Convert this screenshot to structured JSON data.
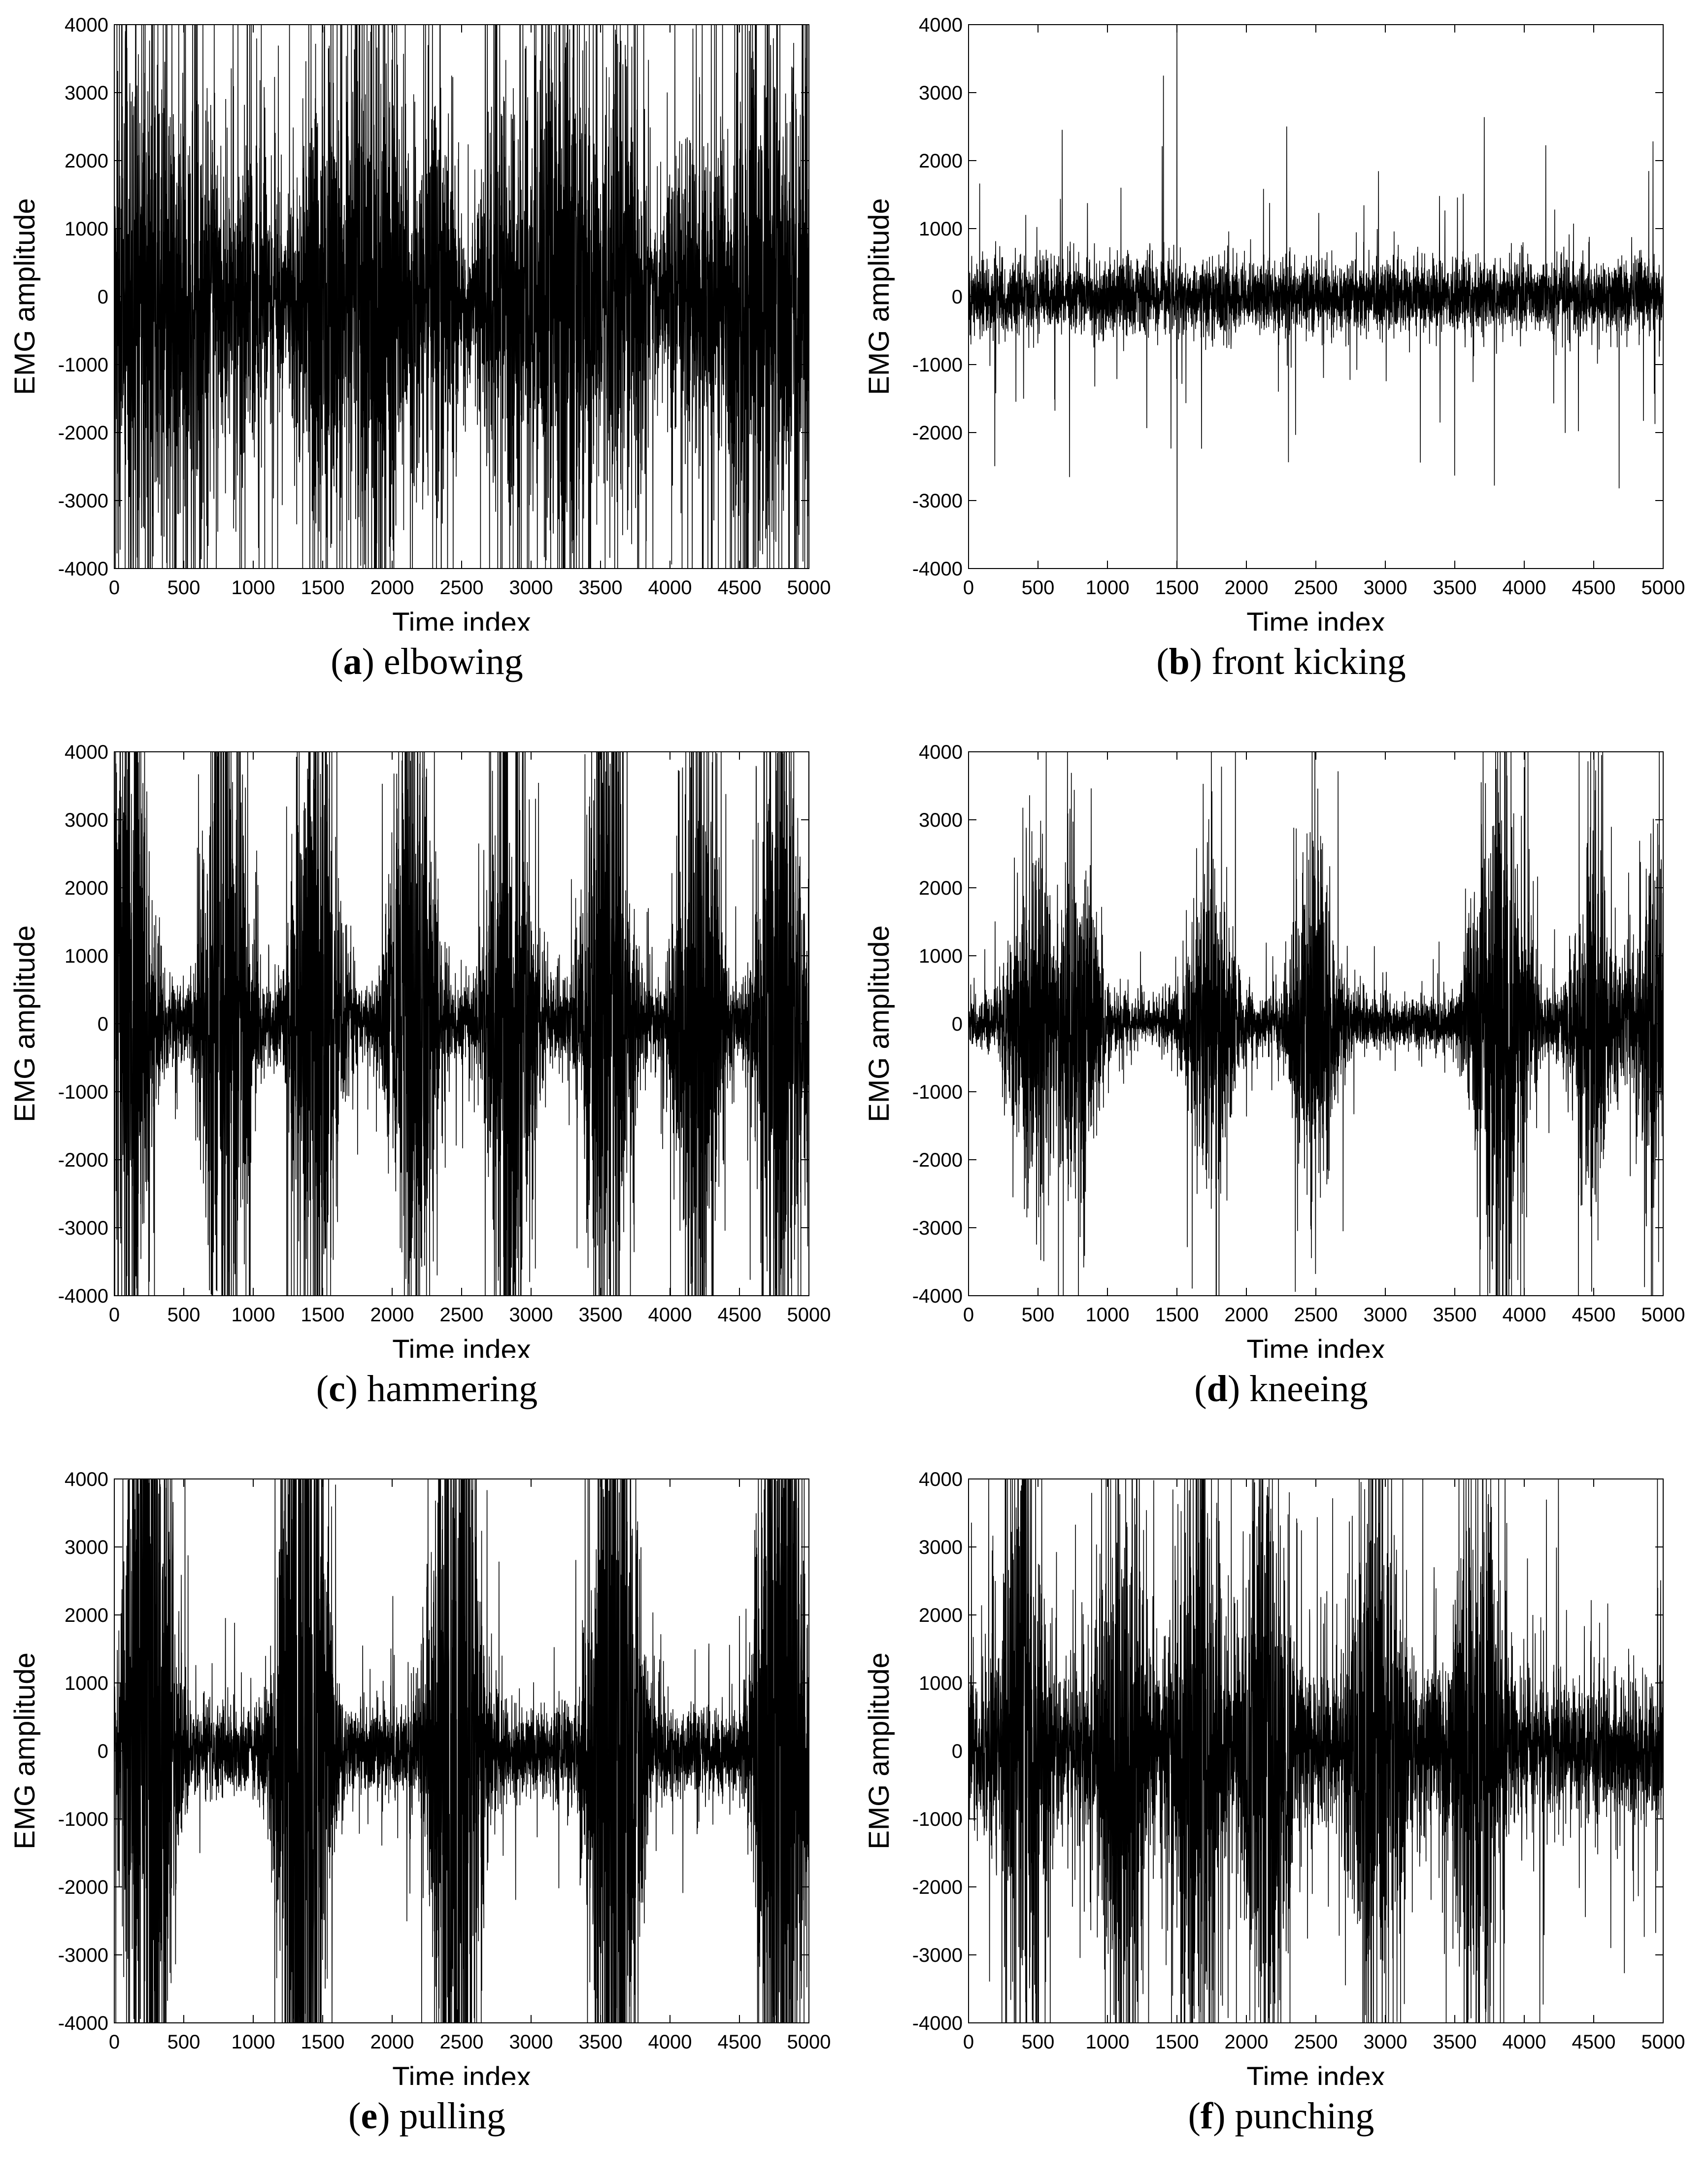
{
  "figure": {
    "panels": [
      {
        "letter": "a",
        "name": "elbowing",
        "pos": 0,
        "seed": 11,
        "centers": [],
        "regime": "dense",
        "base": 1600,
        "peak": 0,
        "spike": 0.16
      },
      {
        "letter": "b",
        "name": "front kicking",
        "pos": 1,
        "seed": 23,
        "centers": [],
        "regime": "quiet",
        "base": 260,
        "peak": 0,
        "spike": 0.03
      },
      {
        "letter": "c",
        "name": "hammering",
        "pos": 2,
        "seed": 37,
        "centers": [
          100,
          800,
          1450,
          2150,
          2850,
          3550,
          4200,
          4800
        ],
        "regime": "bursts",
        "base": 220,
        "peak": 2800,
        "spike": 0.1
      },
      {
        "letter": "d",
        "name": "kneeing",
        "pos": 3,
        "seed": 41,
        "centers": [
          450,
          780,
          1750,
          2500,
          3750,
          3900,
          4500,
          4950
        ],
        "regime": "bursts",
        "base": 180,
        "peak": 1300,
        "spike": 0.06
      },
      {
        "letter": "e",
        "name": "pulling",
        "pos": 4,
        "seed": 53,
        "centers": [
          250,
          1350,
          2450,
          3600,
          4800
        ],
        "regime": "bursts",
        "base": 300,
        "peak": 5000,
        "spike": 0.1
      },
      {
        "letter": "f",
        "name": "punching",
        "pos": 5,
        "seed": 67,
        "centers": [
          400,
          1100,
          1650,
          2150,
          2950,
          3650
        ],
        "regime": "bursts",
        "base": 500,
        "peak": 2000,
        "spike": 0.12
      }
    ]
  },
  "chart_data": [
    {
      "type": "line",
      "caption_letter": "a",
      "caption_text": "elbowing",
      "xlabel": "Time index",
      "ylabel": "EMG amplitude",
      "xlim": [
        0,
        5000
      ],
      "ylim": [
        -4000,
        4000
      ],
      "xticks": [
        0,
        500,
        1000,
        1500,
        2000,
        2500,
        3000,
        3500,
        4000,
        4500,
        5000
      ],
      "yticks": [
        -4000,
        -3000,
        -2000,
        -1000,
        0,
        1000,
        2000,
        3000,
        4000
      ],
      "series": [
        {
          "description": "dense high-amplitude EMG signal throughout, frequently clipping at ±4000",
          "n_points": 5000
        }
      ]
    },
    {
      "type": "line",
      "caption_letter": "b",
      "caption_text": "front kicking",
      "xlabel": "Time index",
      "ylabel": "EMG amplitude",
      "xlim": [
        0,
        5000
      ],
      "ylim": [
        -4000,
        4000
      ],
      "xticks": [
        0,
        500,
        1000,
        1500,
        2000,
        2500,
        3000,
        3500,
        4000,
        4500,
        5000
      ],
      "yticks": [
        -4000,
        -3000,
        -2000,
        -1000,
        0,
        1000,
        2000,
        3000,
        4000
      ],
      "series": [
        {
          "description": "low-amplitude signal around 0 with sparse spikes; largest spike near index 1500 reaching ±4000",
          "n_points": 5000
        }
      ]
    },
    {
      "type": "line",
      "caption_letter": "c",
      "caption_text": "hammering",
      "xlabel": "Time index",
      "ylabel": "EMG amplitude",
      "xlim": [
        0,
        5000
      ],
      "ylim": [
        -4000,
        4000
      ],
      "xticks": [
        0,
        500,
        1000,
        1500,
        2000,
        2500,
        3000,
        3500,
        4000,
        4500,
        5000
      ],
      "yticks": [
        -4000,
        -3000,
        -2000,
        -1000,
        0,
        1000,
        2000,
        3000,
        4000
      ],
      "series": [
        {
          "description": "periodic high-amplitude bursts roughly every 700 samples separated by quiet intervals",
          "n_points": 5000
        }
      ]
    },
    {
      "type": "line",
      "caption_letter": "d",
      "caption_text": "kneeing",
      "xlabel": "Time index",
      "ylabel": "EMG amplitude",
      "xlim": [
        0,
        5000
      ],
      "ylim": [
        -4000,
        4000
      ],
      "xticks": [
        0,
        500,
        1000,
        1500,
        2000,
        2500,
        3000,
        3500,
        4000,
        4500,
        5000
      ],
      "yticks": [
        -4000,
        -3000,
        -2000,
        -1000,
        0,
        1000,
        2000,
        3000,
        4000
      ],
      "series": [
        {
          "description": "moderate bursts near 500-800, 1750, 2500, 3800-3900 and 4500 on a low-amplitude baseline",
          "n_points": 5000
        }
      ]
    },
    {
      "type": "line",
      "caption_letter": "e",
      "caption_text": "pulling",
      "xlabel": "Time index",
      "ylabel": "EMG amplitude",
      "xlim": [
        0,
        5000
      ],
      "ylim": [
        -4000,
        4000
      ],
      "xticks": [
        0,
        500,
        1000,
        1500,
        2000,
        2500,
        3000,
        3500,
        4000,
        4500,
        5000
      ],
      "yticks": [
        -4000,
        -3000,
        -2000,
        -1000,
        0,
        1000,
        2000,
        3000,
        4000
      ],
      "series": [
        {
          "description": "saturated bursts (±4000) at 0-550, 1100-1600, 2200-2800, 3300-4050 and 4600-5000 with quieter gaps",
          "n_points": 5000
        }
      ]
    },
    {
      "type": "line",
      "caption_letter": "f",
      "caption_text": "punching",
      "xlabel": "Time index",
      "ylabel": "EMG amplitude",
      "xlim": [
        0,
        5000
      ],
      "ylim": [
        -4000,
        4000
      ],
      "xticks": [
        0,
        500,
        1000,
        1500,
        2000,
        2500,
        3000,
        3500,
        4000,
        4500,
        5000
      ],
      "yticks": [
        -4000,
        -3000,
        -2000,
        -1000,
        0,
        1000,
        2000,
        3000,
        4000
      ],
      "series": [
        {
          "description": "dense bursts across the record with strongest activity near 1600, 2100, 3000 and 3700",
          "n_points": 5000
        }
      ]
    }
  ]
}
